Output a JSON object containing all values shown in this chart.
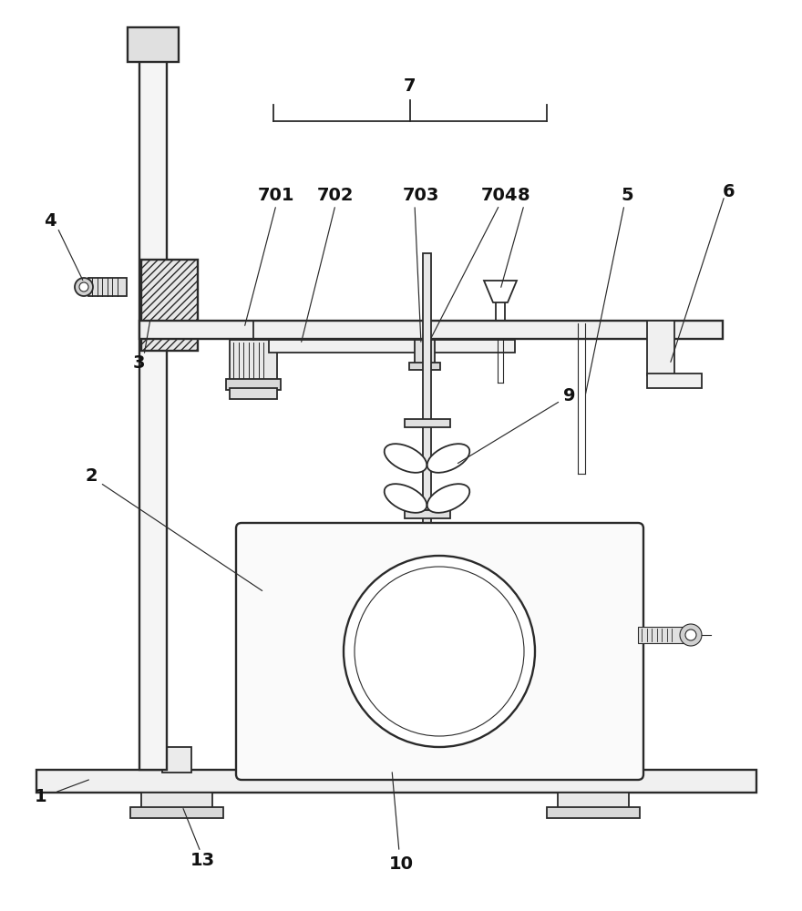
{
  "bg": "#ffffff",
  "lc": "#2a2a2a",
  "figsize": [
    8.8,
    10.0
  ],
  "dpi": 100,
  "lw": 1.3,
  "lw2": 1.7,
  "lt": 0.8,
  "fs": 14
}
